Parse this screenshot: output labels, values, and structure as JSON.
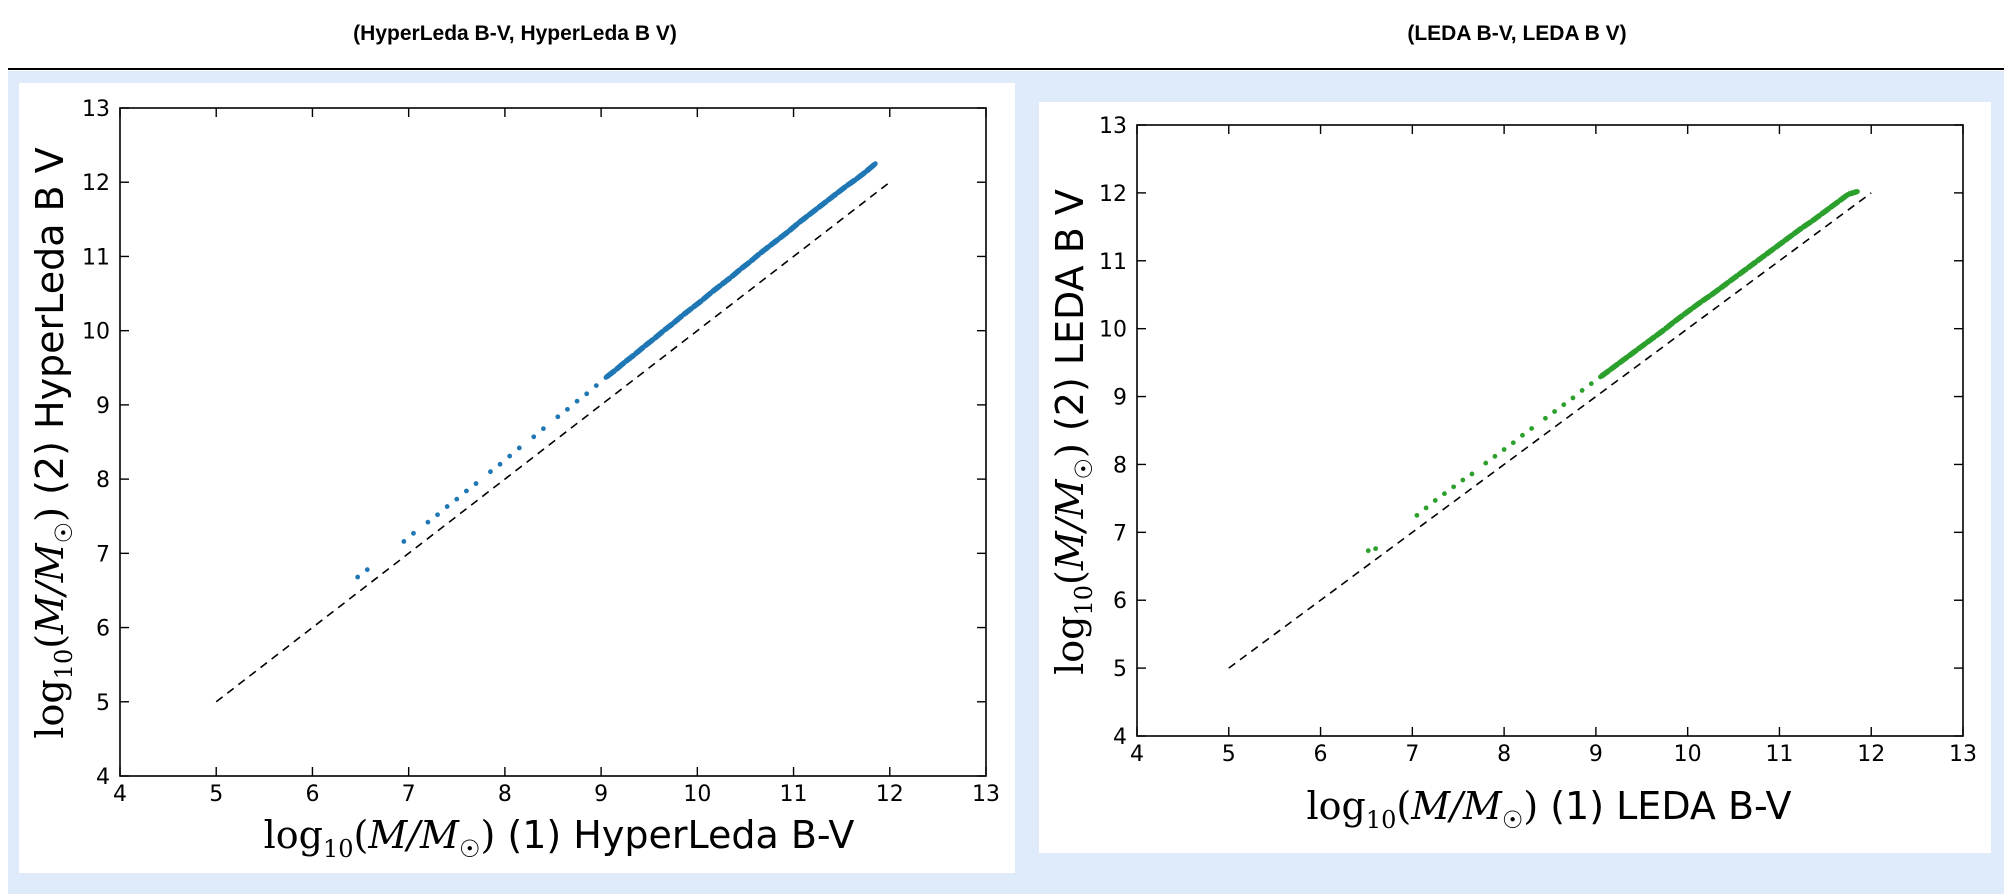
{
  "headers": {
    "left": "(HyperLeda B-V, HyperLeda B V)",
    "right": "(LEDA B-V, LEDA B V)"
  },
  "colors": {
    "panel_bg": "#dfeafb",
    "series_left": "#1f77b4",
    "series_right": "#2ca02c",
    "reference_line": "#000000"
  },
  "chart_data": [
    {
      "type": "scatter",
      "xlabel": "log10(M/M☉) (1) HyperLeda B-V",
      "ylabel": "log10(M/M☉) (2) HyperLeda B V",
      "xlabel_text": "(1) HyperLeda B-V",
      "ylabel_text": "(2) HyperLeda B V",
      "xlim": [
        4,
        13
      ],
      "ylim": [
        4,
        13
      ],
      "xticks": [
        4,
        5,
        6,
        7,
        8,
        9,
        10,
        11,
        12,
        13
      ],
      "yticks": [
        4,
        5,
        6,
        7,
        8,
        9,
        10,
        11,
        12,
        13
      ],
      "grid": false,
      "reference_line": {
        "style": "dashed",
        "x": [
          5,
          12
        ],
        "y": [
          5,
          12
        ]
      },
      "series": [
        {
          "color": "#1f77b4",
          "x": [
            6.47,
            6.57,
            6.95,
            7.05,
            7.2,
            7.3,
            7.4,
            7.5,
            7.6,
            7.7,
            7.85,
            7.95,
            8.05,
            8.15,
            8.3,
            8.4,
            8.55,
            8.65,
            8.75,
            8.85,
            8.95,
            9.05,
            9.15,
            9.25,
            9.35,
            9.45,
            9.55,
            9.65,
            9.75,
            9.85,
            9.95,
            10.05,
            10.15,
            10.25,
            10.35,
            10.45,
            10.55,
            10.65,
            10.75,
            10.85,
            10.95,
            11.05,
            11.15,
            11.25,
            11.35,
            11.45,
            11.55,
            11.65,
            11.75,
            11.85
          ],
          "y": [
            6.68,
            6.78,
            7.16,
            7.27,
            7.42,
            7.52,
            7.63,
            7.73,
            7.84,
            7.94,
            8.1,
            8.2,
            8.31,
            8.42,
            8.57,
            8.68,
            8.84,
            8.94,
            9.05,
            9.15,
            9.26,
            9.37,
            9.47,
            9.58,
            9.68,
            9.79,
            9.89,
            10.0,
            10.1,
            10.21,
            10.31,
            10.41,
            10.52,
            10.62,
            10.72,
            10.83,
            10.93,
            11.04,
            11.14,
            11.24,
            11.34,
            11.45,
            11.55,
            11.65,
            11.75,
            11.85,
            11.95,
            12.04,
            12.14,
            12.25
          ]
        }
      ]
    },
    {
      "type": "scatter",
      "xlabel": "log10(M/M☉) (1) LEDA B-V",
      "ylabel": "log10(M/M☉) (2) LEDA B V",
      "xlabel_text": "(1) LEDA B-V",
      "ylabel_text": "(2) LEDA B V",
      "xlim": [
        4,
        13
      ],
      "ylim": [
        4,
        13
      ],
      "xticks": [
        4,
        5,
        6,
        7,
        8,
        9,
        10,
        11,
        12,
        13
      ],
      "yticks": [
        4,
        5,
        6,
        7,
        8,
        9,
        10,
        11,
        12,
        13
      ],
      "grid": false,
      "reference_line": {
        "style": "dashed",
        "x": [
          5,
          12
        ],
        "y": [
          5,
          12
        ]
      },
      "series": [
        {
          "color": "#2ca02c",
          "x": [
            6.52,
            6.6,
            7.05,
            7.15,
            7.25,
            7.35,
            7.45,
            7.55,
            7.65,
            7.8,
            7.9,
            8.0,
            8.1,
            8.2,
            8.3,
            8.45,
            8.55,
            8.65,
            8.75,
            8.85,
            8.95,
            9.05,
            9.15,
            9.25,
            9.35,
            9.45,
            9.55,
            9.65,
            9.75,
            9.85,
            9.95,
            10.05,
            10.15,
            10.25,
            10.35,
            10.45,
            10.55,
            10.65,
            10.75,
            10.85,
            10.95,
            11.05,
            11.15,
            11.25,
            11.35,
            11.45,
            11.55,
            11.65,
            11.75,
            11.85
          ],
          "y": [
            6.73,
            6.76,
            7.25,
            7.36,
            7.47,
            7.57,
            7.67,
            7.77,
            7.86,
            8.02,
            8.12,
            8.22,
            8.32,
            8.43,
            8.53,
            8.68,
            8.78,
            8.88,
            8.98,
            9.09,
            9.19,
            9.29,
            9.39,
            9.49,
            9.59,
            9.69,
            9.79,
            9.89,
            9.99,
            10.1,
            10.2,
            10.3,
            10.4,
            10.49,
            10.59,
            10.69,
            10.79,
            10.89,
            10.99,
            11.09,
            11.19,
            11.29,
            11.39,
            11.49,
            11.58,
            11.68,
            11.78,
            11.88,
            11.98,
            12.02
          ]
        }
      ]
    }
  ]
}
